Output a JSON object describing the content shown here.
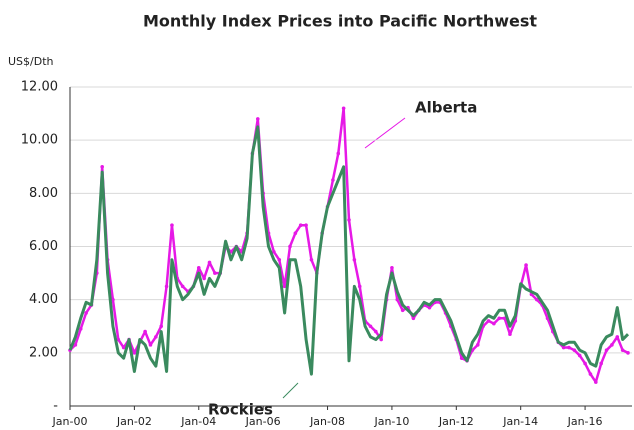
{
  "chart_data": {
    "type": "line",
    "title": "Monthly Index Prices into Pacific Northwest",
    "y_axis_label": "US$/Dth",
    "categories": [
      "Jan-00",
      null,
      null,
      null,
      null,
      null,
      null,
      null,
      null,
      null,
      null,
      null,
      "Jan-02",
      null,
      null,
      null,
      null,
      null,
      null,
      null,
      null,
      null,
      null,
      null,
      "Jan-04",
      null,
      null,
      null,
      null,
      null,
      null,
      null,
      null,
      null,
      null,
      null,
      "Jan-06",
      null,
      null,
      null,
      null,
      null,
      null,
      null,
      null,
      null,
      null,
      null,
      "Jan-08",
      null,
      null,
      null,
      null,
      null,
      null,
      null,
      null,
      null,
      null,
      null,
      "Jan-10",
      null,
      null,
      null,
      null,
      null,
      null,
      null,
      null,
      null,
      null,
      null,
      "Jan-12",
      null,
      null,
      null,
      null,
      null,
      null,
      null,
      null,
      null,
      null,
      null,
      "Jan-14",
      null,
      null,
      null,
      null,
      null,
      null,
      null,
      null,
      null,
      null,
      null,
      "Jan-16",
      null,
      null,
      null,
      null,
      null,
      null,
      null,
      null
    ],
    "series": [
      {
        "name": "Alberta",
        "color": "#e619e6",
        "values": [
          2.1,
          2.3,
          2.9,
          3.5,
          3.8,
          5.0,
          9.0,
          5.5,
          4.0,
          2.5,
          2.2,
          2.5,
          2.0,
          2.4,
          2.8,
          2.3,
          2.6,
          3.0,
          4.5,
          6.8,
          4.8,
          4.5,
          4.3,
          4.5,
          5.2,
          4.8,
          5.4,
          5.0,
          5.0,
          6.0,
          5.8,
          6.0,
          5.8,
          6.5,
          9.5,
          10.8,
          8.0,
          6.5,
          5.8,
          5.5,
          4.5,
          6.0,
          6.5,
          6.8,
          6.8,
          5.5,
          5.0,
          6.5,
          7.5,
          8.5,
          9.5,
          11.2,
          7.0,
          5.5,
          4.5,
          3.2,
          3.0,
          2.8,
          2.5,
          4.0,
          5.2,
          4.0,
          3.6,
          3.7,
          3.3,
          3.6,
          3.8,
          3.7,
          3.9,
          3.9,
          3.5,
          3.0,
          2.5,
          1.8,
          1.7,
          2.1,
          2.3,
          3.0,
          3.2,
          3.1,
          3.3,
          3.3,
          2.7,
          3.2,
          4.5,
          5.3,
          4.2,
          4.0,
          3.8,
          3.3,
          2.8,
          2.4,
          2.2,
          2.2,
          2.1,
          1.9,
          1.6,
          1.2,
          0.9,
          1.6,
          2.1,
          2.3,
          2.6,
          2.1,
          2.0
        ]
      },
      {
        "name": "Rockies",
        "color": "#3a8a5e",
        "values": [
          2.1,
          2.6,
          3.3,
          3.9,
          3.8,
          5.5,
          8.8,
          5.0,
          3.0,
          2.0,
          1.8,
          2.5,
          1.3,
          2.5,
          2.3,
          1.8,
          1.5,
          2.8,
          1.3,
          5.5,
          4.5,
          4.0,
          4.2,
          4.5,
          5.0,
          4.2,
          4.8,
          4.5,
          5.0,
          6.2,
          5.5,
          6.0,
          5.5,
          6.3,
          9.5,
          10.5,
          7.5,
          6.0,
          5.5,
          5.2,
          3.5,
          5.5,
          5.5,
          4.5,
          2.5,
          1.2,
          5.0,
          6.5,
          7.5,
          8.0,
          8.5,
          9.0,
          1.7,
          4.5,
          4.0,
          3.0,
          2.6,
          2.5,
          2.7,
          4.2,
          5.0,
          4.3,
          3.8,
          3.6,
          3.4,
          3.6,
          3.9,
          3.8,
          4.0,
          4.0,
          3.6,
          3.2,
          2.6,
          2.0,
          1.7,
          2.4,
          2.7,
          3.2,
          3.4,
          3.3,
          3.6,
          3.6,
          3.0,
          3.4,
          4.6,
          4.4,
          4.3,
          4.2,
          3.9,
          3.6,
          3.0,
          2.4,
          2.3,
          2.4,
          2.4,
          2.1,
          2.0,
          1.6,
          1.5,
          2.3,
          2.6,
          2.7,
          3.7,
          2.5,
          2.7
        ]
      }
    ],
    "ylim": [
      0,
      12
    ],
    "yticks": [
      {
        "value": 0,
        "label": "-"
      },
      {
        "value": 2,
        "label": "2.00"
      },
      {
        "value": 4,
        "label": "4.00"
      },
      {
        "value": 6,
        "label": "6.00"
      },
      {
        "value": 8,
        "label": "8.00"
      },
      {
        "value": 10,
        "label": "10.00"
      },
      {
        "value": 12,
        "label": "12.00"
      }
    ],
    "grid": true
  }
}
